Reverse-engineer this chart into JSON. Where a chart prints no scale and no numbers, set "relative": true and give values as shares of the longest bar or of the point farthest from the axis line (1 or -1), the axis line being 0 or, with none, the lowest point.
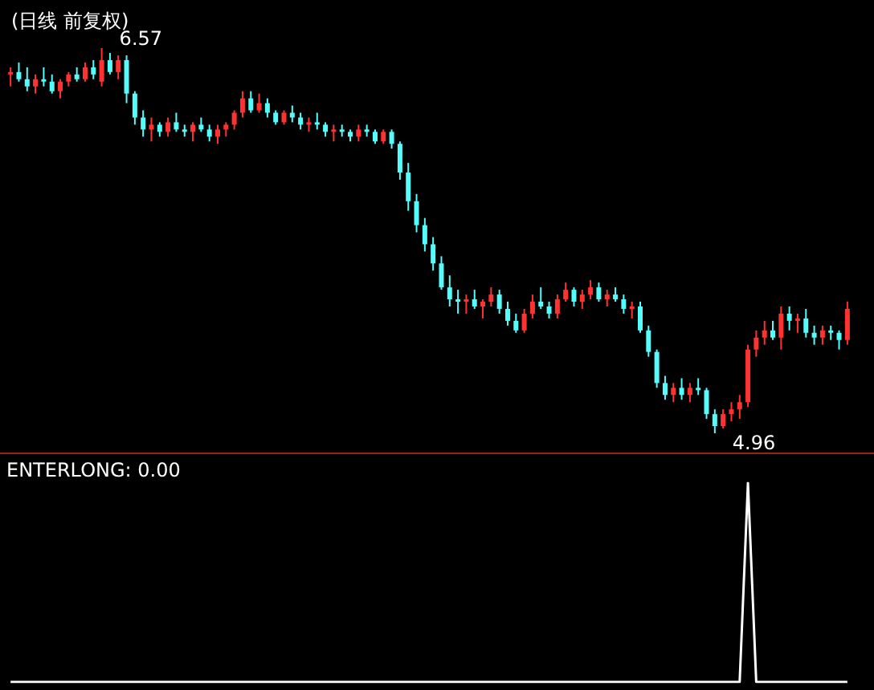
{
  "chart_data": [
    {
      "type": "candlestick",
      "title": "(日线 前复权)",
      "categories": [
        null,
        null,
        null,
        null,
        null,
        null,
        null,
        null,
        null,
        null,
        null,
        null,
        null,
        null,
        null,
        null,
        null,
        null,
        null,
        null,
        null,
        null,
        null,
        null,
        null,
        null,
        null,
        null,
        null,
        null,
        null,
        null,
        null,
        null,
        null,
        null,
        null,
        null,
        null,
        null,
        null,
        null,
        null,
        null,
        null,
        null,
        null,
        null,
        null,
        null,
        null,
        null,
        null,
        null,
        null,
        null,
        null,
        null,
        null,
        null,
        null,
        null,
        null,
        null,
        null,
        null,
        null,
        null,
        null,
        null,
        null,
        null,
        null,
        null,
        null,
        null,
        null,
        null,
        null,
        null,
        null,
        null,
        null,
        null,
        null,
        null,
        null,
        null,
        null,
        null,
        null,
        null,
        null,
        null,
        null,
        null,
        null,
        null,
        null,
        null,
        null,
        null
      ],
      "ohlc": [
        [
          6.46,
          6.49,
          6.41,
          6.47
        ],
        [
          6.47,
          6.51,
          6.43,
          6.44
        ],
        [
          6.44,
          6.49,
          6.39,
          6.41
        ],
        [
          6.41,
          6.46,
          6.38,
          6.44
        ],
        [
          6.44,
          6.49,
          6.41,
          6.43
        ],
        [
          6.43,
          6.46,
          6.38,
          6.39
        ],
        [
          6.39,
          6.44,
          6.36,
          6.43
        ],
        [
          6.43,
          6.47,
          6.41,
          6.46
        ],
        [
          6.46,
          6.49,
          6.43,
          6.44
        ],
        [
          6.44,
          6.51,
          6.43,
          6.49
        ],
        [
          6.49,
          6.52,
          6.44,
          6.46
        ],
        [
          6.43,
          6.57,
          6.41,
          6.52
        ],
        [
          6.52,
          6.55,
          6.46,
          6.47
        ],
        [
          6.47,
          6.54,
          6.44,
          6.52
        ],
        [
          6.52,
          6.54,
          6.34,
          6.38
        ],
        [
          6.38,
          6.39,
          6.25,
          6.28
        ],
        [
          6.28,
          6.31,
          6.2,
          6.23
        ],
        [
          6.23,
          6.28,
          6.18,
          6.25
        ],
        [
          6.25,
          6.26,
          6.2,
          6.22
        ],
        [
          6.22,
          6.28,
          6.2,
          6.26
        ],
        [
          6.26,
          6.3,
          6.22,
          6.23
        ],
        [
          6.23,
          6.25,
          6.2,
          6.22
        ],
        [
          6.22,
          6.26,
          6.18,
          6.25
        ],
        [
          6.25,
          6.28,
          6.22,
          6.23
        ],
        [
          6.23,
          6.25,
          6.18,
          6.2
        ],
        [
          6.2,
          6.25,
          6.17,
          6.23
        ],
        [
          6.23,
          6.26,
          6.2,
          6.25
        ],
        [
          6.25,
          6.31,
          6.23,
          6.3
        ],
        [
          6.3,
          6.39,
          6.28,
          6.36
        ],
        [
          6.36,
          6.39,
          6.3,
          6.31
        ],
        [
          6.31,
          6.38,
          6.3,
          6.34
        ],
        [
          6.34,
          6.36,
          6.28,
          6.3
        ],
        [
          6.3,
          6.31,
          6.25,
          6.26
        ],
        [
          6.26,
          6.31,
          6.25,
          6.3
        ],
        [
          6.3,
          6.33,
          6.26,
          6.28
        ],
        [
          6.28,
          6.3,
          6.23,
          6.25
        ],
        [
          6.25,
          6.28,
          6.22,
          6.26
        ],
        [
          6.26,
          6.3,
          6.23,
          6.25
        ],
        [
          6.25,
          6.26,
          6.2,
          6.22
        ],
        [
          6.22,
          6.25,
          6.18,
          6.23
        ],
        [
          6.23,
          6.25,
          6.2,
          6.22
        ],
        [
          6.22,
          6.23,
          6.18,
          6.2
        ],
        [
          6.2,
          6.25,
          6.18,
          6.23
        ],
        [
          6.23,
          6.25,
          6.2,
          6.22
        ],
        [
          6.22,
          6.23,
          6.17,
          6.18
        ],
        [
          6.18,
          6.23,
          6.17,
          6.22
        ],
        [
          6.22,
          6.23,
          6.15,
          6.17
        ],
        [
          6.17,
          6.18,
          6.02,
          6.05
        ],
        [
          6.05,
          6.09,
          5.89,
          5.93
        ],
        [
          5.93,
          5.96,
          5.8,
          5.83
        ],
        [
          5.83,
          5.86,
          5.72,
          5.75
        ],
        [
          5.75,
          5.78,
          5.64,
          5.67
        ],
        [
          5.67,
          5.7,
          5.56,
          5.57
        ],
        [
          5.57,
          5.62,
          5.49,
          5.52
        ],
        [
          5.52,
          5.56,
          5.46,
          5.51
        ],
        [
          5.51,
          5.54,
          5.46,
          5.52
        ],
        [
          5.52,
          5.56,
          5.48,
          5.49
        ],
        [
          5.49,
          5.52,
          5.44,
          5.51
        ],
        [
          5.51,
          5.57,
          5.49,
          5.54
        ],
        [
          5.54,
          5.56,
          5.46,
          5.48
        ],
        [
          5.48,
          5.51,
          5.41,
          5.43
        ],
        [
          5.43,
          5.46,
          5.38,
          5.39
        ],
        [
          5.39,
          5.48,
          5.38,
          5.46
        ],
        [
          5.46,
          5.54,
          5.44,
          5.51
        ],
        [
          5.51,
          5.57,
          5.48,
          5.49
        ],
        [
          5.49,
          5.51,
          5.44,
          5.46
        ],
        [
          5.46,
          5.54,
          5.44,
          5.52
        ],
        [
          5.52,
          5.59,
          5.51,
          5.56
        ],
        [
          5.56,
          5.57,
          5.49,
          5.51
        ],
        [
          5.51,
          5.56,
          5.48,
          5.54
        ],
        [
          5.54,
          5.6,
          5.52,
          5.57
        ],
        [
          5.57,
          5.59,
          5.51,
          5.52
        ],
        [
          5.52,
          5.56,
          5.49,
          5.54
        ],
        [
          5.54,
          5.57,
          5.51,
          5.52
        ],
        [
          5.52,
          5.54,
          5.46,
          5.48
        ],
        [
          5.48,
          5.51,
          5.44,
          5.49
        ],
        [
          5.49,
          5.51,
          5.38,
          5.39
        ],
        [
          5.39,
          5.41,
          5.28,
          5.3
        ],
        [
          5.3,
          5.31,
          5.15,
          5.17
        ],
        [
          5.17,
          5.2,
          5.1,
          5.12
        ],
        [
          5.12,
          5.17,
          5.09,
          5.15
        ],
        [
          5.15,
          5.19,
          5.1,
          5.12
        ],
        [
          5.12,
          5.17,
          5.09,
          5.15
        ],
        [
          5.15,
          5.19,
          5.12,
          5.14
        ],
        [
          5.14,
          5.15,
          5.02,
          5.04
        ],
        [
          5.04,
          5.06,
          4.96,
          4.99
        ],
        [
          4.99,
          5.06,
          4.98,
          5.04
        ],
        [
          5.04,
          5.09,
          5.01,
          5.06
        ],
        [
          5.06,
          5.12,
          5.02,
          5.09
        ],
        [
          5.09,
          5.33,
          5.07,
          5.31
        ],
        [
          5.31,
          5.39,
          5.28,
          5.36
        ],
        [
          5.36,
          5.43,
          5.33,
          5.39
        ],
        [
          5.39,
          5.43,
          5.35,
          5.36
        ],
        [
          5.36,
          5.49,
          5.31,
          5.46
        ],
        [
          5.46,
          5.49,
          5.39,
          5.43
        ],
        [
          5.43,
          5.46,
          5.38,
          5.44
        ],
        [
          5.44,
          5.48,
          5.36,
          5.38
        ],
        [
          5.38,
          5.41,
          5.33,
          5.36
        ],
        [
          5.36,
          5.41,
          5.33,
          5.39
        ],
        [
          5.39,
          5.41,
          5.35,
          5.38
        ],
        [
          5.38,
          5.39,
          5.31,
          5.35
        ],
        [
          5.35,
          5.51,
          5.33,
          5.48
        ]
      ],
      "annotations": [
        "6.57",
        "4.96"
      ]
    },
    {
      "type": "line",
      "relative": true,
      "annotations": [
        "ENTERLONG: 0.00"
      ],
      "categories": [
        null,
        null,
        null,
        null,
        null,
        null,
        null,
        null,
        null,
        null,
        null,
        null,
        null,
        null,
        null,
        null,
        null,
        null,
        null,
        null,
        null,
        null,
        null,
        null,
        null,
        null,
        null,
        null,
        null,
        null,
        null,
        null,
        null,
        null,
        null,
        null,
        null,
        null,
        null,
        null,
        null,
        null,
        null,
        null,
        null,
        null,
        null,
        null,
        null,
        null,
        null,
        null,
        null,
        null,
        null,
        null,
        null,
        null,
        null,
        null,
        null,
        null,
        null,
        null,
        null,
        null,
        null,
        null,
        null,
        null,
        null,
        null,
        null,
        null,
        null,
        null,
        null,
        null,
        null,
        null,
        null,
        null,
        null,
        null,
        null,
        null,
        null,
        null,
        null,
        null,
        null,
        null,
        null,
        null,
        null,
        null,
        null,
        null,
        null,
        null,
        null,
        null
      ],
      "series": [
        {
          "color": "#ffffff",
          "values": [
            0,
            0,
            0,
            0,
            0,
            0,
            0,
            0,
            0,
            0,
            0,
            0,
            0,
            0,
            0,
            0,
            0,
            0,
            0,
            0,
            0,
            0,
            0,
            0,
            0,
            0,
            0,
            0,
            0,
            0,
            0,
            0,
            0,
            0,
            0,
            0,
            0,
            0,
            0,
            0,
            0,
            0,
            0,
            0,
            0,
            0,
            0,
            0,
            0,
            0,
            0,
            0,
            0,
            0,
            0,
            0,
            0,
            0,
            0,
            0,
            0,
            0,
            0,
            0,
            0,
            0,
            0,
            0,
            0,
            0,
            0,
            0,
            0,
            0,
            0,
            0,
            0,
            0,
            0,
            0,
            0,
            0,
            0,
            0,
            0,
            0,
            0,
            0,
            0,
            1,
            0,
            0,
            0,
            0,
            0,
            0,
            0,
            0,
            0,
            0,
            0,
            0
          ]
        }
      ]
    }
  ]
}
